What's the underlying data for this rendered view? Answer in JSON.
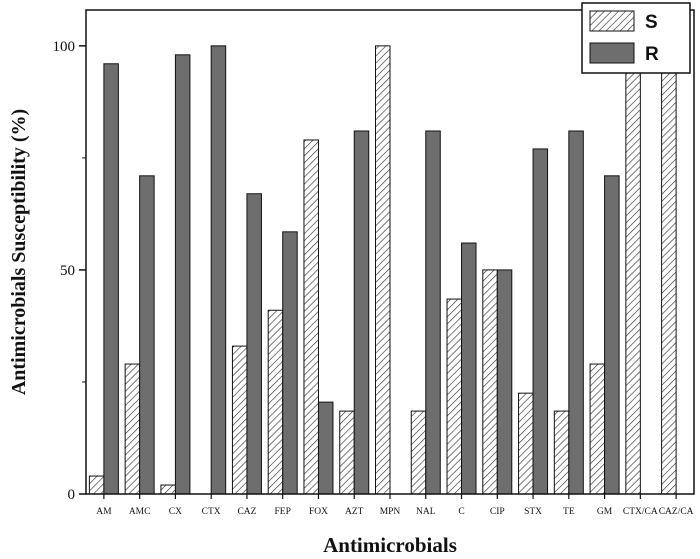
{
  "chart_data": {
    "type": "bar",
    "title": "",
    "xlabel": "Antimicrobials",
    "ylabel": "Antimicrobials Susceptibility (%)",
    "ylim": [
      0,
      108
    ],
    "yticks": [
      0,
      50,
      100
    ],
    "categories": [
      "AM",
      "AMC",
      "CX",
      "CTX",
      "CAZ",
      "FEP",
      "FOX",
      "AZT",
      "MPN",
      "NAL",
      "C",
      "CIP",
      "STX",
      "TE",
      "GM",
      "CTX/CA",
      "CAZ/CA"
    ],
    "series": [
      {
        "name": "S",
        "pattern": "hatched",
        "values": [
          4,
          29,
          2,
          0,
          33,
          41,
          79,
          18.5,
          100,
          18.5,
          43.5,
          50,
          22.5,
          18.5,
          29,
          100,
          100
        ]
      },
      {
        "name": "R",
        "pattern": "solid",
        "color": "#6e6e6e",
        "values": [
          96,
          71,
          98,
          100,
          67,
          58.5,
          20.5,
          81,
          0,
          81,
          56,
          50,
          77,
          81,
          71,
          0,
          0
        ]
      }
    ],
    "legend_position": "top-right",
    "grid": false
  }
}
